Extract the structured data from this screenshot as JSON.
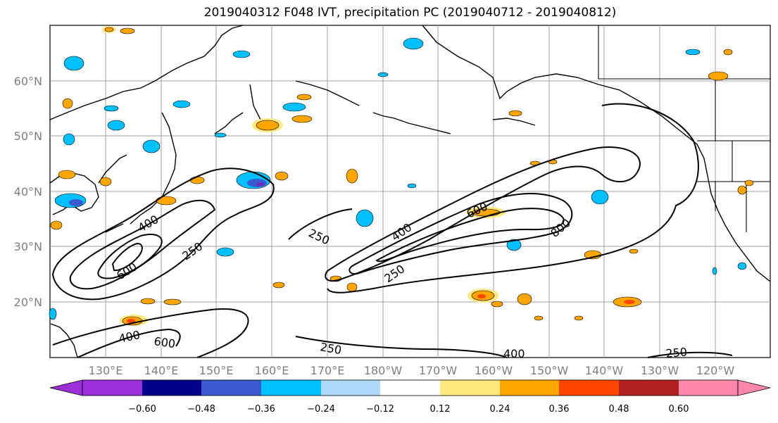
{
  "title": "2019040312 F048 IVT, precipitation PC (2019040712 - 2019040812)",
  "lat_ticks": [
    "60°N",
    "50°N",
    "40°N",
    "30°N",
    "20°N"
  ],
  "lon_ticks": [
    "130°E",
    "140°E",
    "150°E",
    "160°E",
    "170°E",
    "180°W",
    "170°W",
    "160°W",
    "150°W",
    "140°W",
    "130°W",
    "120°W"
  ],
  "contour_labels": [
    "400",
    "250",
    "600",
    "250",
    "400",
    "600",
    "800",
    "250",
    "400",
    "600",
    "250",
    "400",
    "250"
  ],
  "colorbar": {
    "ticks": [
      "−0.60",
      "−0.48",
      "−0.36",
      "−0.24",
      "−0.12",
      "0.12",
      "0.24",
      "0.36",
      "0.48",
      "0.60"
    ],
    "colors": [
      "#9b30d9",
      "#00008b",
      "#3a5bd0",
      "#00bfff",
      "#add8f7",
      "#ffffff",
      "#ffe880",
      "#ffa500",
      "#ff4500",
      "#b22222",
      "#ff88aa",
      "#ff88aa"
    ]
  }
}
